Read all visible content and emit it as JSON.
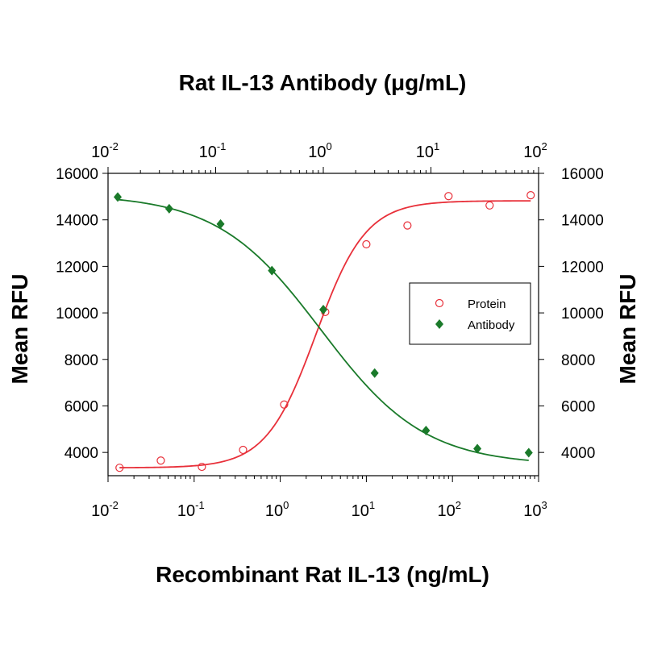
{
  "chart_data": {
    "type": "scatter",
    "top_title": "Rat IL-13 Antibody (μg/mL)",
    "xlabel": "Recombinant Rat IL-13 (ng/mL)",
    "ylabel_left": "Mean RFU",
    "ylabel_right": "Mean RFU",
    "x_scale": "log",
    "x_bottom_lim": [
      0.01,
      1000
    ],
    "x_top_lim": [
      0.01,
      100
    ],
    "ylim": [
      3000,
      16000
    ],
    "y_ticks": [
      4000,
      6000,
      8000,
      10000,
      12000,
      14000,
      16000
    ],
    "x_bottom_ticks": [
      {
        "base": "10",
        "exp": "-2"
      },
      {
        "base": "10",
        "exp": "-1"
      },
      {
        "base": "10",
        "exp": "0"
      },
      {
        "base": "10",
        "exp": "1"
      },
      {
        "base": "10",
        "exp": "2"
      },
      {
        "base": "10",
        "exp": "3"
      }
    ],
    "x_top_ticks": [
      {
        "base": "10",
        "exp": "-2"
      },
      {
        "base": "10",
        "exp": "-1"
      },
      {
        "base": "10",
        "exp": "0"
      },
      {
        "base": "10",
        "exp": "1"
      },
      {
        "base": "10",
        "exp": "2"
      }
    ],
    "grid": false,
    "legend_position": "center-right",
    "series": [
      {
        "name": "Protein",
        "axis": "bottom",
        "marker": "open-circle",
        "color": "#e8303a",
        "points": [
          {
            "x": 0.0136,
            "y": 3340
          },
          {
            "x": 0.041,
            "y": 3650
          },
          {
            "x": 0.123,
            "y": 3380
          },
          {
            "x": 0.37,
            "y": 4110
          },
          {
            "x": 1.11,
            "y": 6060
          },
          {
            "x": 3.33,
            "y": 10040
          },
          {
            "x": 10.0,
            "y": 12950
          },
          {
            "x": 30.0,
            "y": 13760
          },
          {
            "x": 90.0,
            "y": 15020
          },
          {
            "x": 270.0,
            "y": 14620
          },
          {
            "x": 810.0,
            "y": 15060
          }
        ],
        "fit": {
          "bottom": 3340,
          "top": 14820,
          "ec50": 2.6,
          "hill": 1.5
        }
      },
      {
        "name": "Antibody",
        "axis": "top",
        "marker": "filled-diamond",
        "color": "#1a7a2a",
        "points": [
          {
            "x": 0.0123,
            "y": 14980
          },
          {
            "x": 0.037,
            "y": 14480
          },
          {
            "x": 0.111,
            "y": 13820
          },
          {
            "x": 0.333,
            "y": 11820
          },
          {
            "x": 1.0,
            "y": 10140
          },
          {
            "x": 3.0,
            "y": 7410
          },
          {
            "x": 9.0,
            "y": 4940
          },
          {
            "x": 27.0,
            "y": 4160
          },
          {
            "x": 81.0,
            "y": 3990
          }
        ],
        "fit": {
          "bottom": 3450,
          "top": 15100,
          "ec50": 0.95,
          "hill": -0.9
        }
      }
    ]
  }
}
